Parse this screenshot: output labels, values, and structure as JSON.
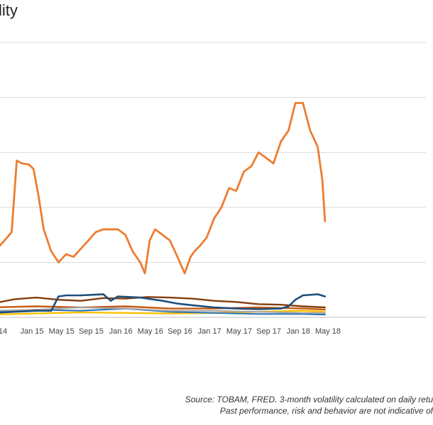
{
  "chart_data": {
    "type": "line",
    "title": "lity",
    "xlabel": "",
    "ylabel": "",
    "grid": true,
    "x_ticks": [
      "14",
      "Jan 15",
      "May 15",
      "Sep 15",
      "Jan 16",
      "May 16",
      "Sep 16",
      "Jan 17",
      "May 17",
      "Sep 17",
      "Jan 18",
      "May 18"
    ],
    "y_range": [
      0,
      500
    ],
    "colors": {
      "orange": "#ed7d31",
      "dark_brown": "#843c0c",
      "dark_blue": "#1f4e79",
      "gold": "#ffc000",
      "burnt_orange": "#c55a11",
      "steel_blue": "#2e75b6",
      "gray": "#a5a5a5"
    },
    "series": [
      {
        "color": "orange",
        "width": 2.8,
        "x": [
          "2014-10-01",
          "2014-11-01",
          "2014-12-01",
          "2014-12-20",
          "2015-01-10",
          "2015-02-01",
          "2015-03-01",
          "2015-03-20",
          "2015-04-10",
          "2015-05-01",
          "2015-06-01",
          "2015-07-01",
          "2015-08-01",
          "2015-09-01",
          "2015-10-01",
          "2015-11-01",
          "2015-12-01",
          "2016-01-01",
          "2016-02-01",
          "2016-03-01",
          "2016-04-01",
          "2016-05-01",
          "2016-06-01",
          "2016-06-20",
          "2016-07-10",
          "2016-08-01",
          "2016-09-01",
          "2016-10-01",
          "2016-11-01",
          "2016-12-01",
          "2016-12-25",
          "2017-01-10",
          "2017-02-01",
          "2017-03-01",
          "2017-04-01",
          "2017-05-01",
          "2017-06-01",
          "2017-07-01",
          "2017-08-01",
          "2017-09-01",
          "2017-10-01",
          "2017-11-01",
          "2017-12-01",
          "2018-01-01",
          "2018-02-01",
          "2018-03-01",
          "2018-04-01",
          "2018-05-01",
          "2018-06-01",
          "2018-06-20",
          "2018-07-01"
        ],
        "values": [
          125,
          130,
          145,
          155,
          285,
          280,
          278,
          270,
          220,
          160,
          120,
          100,
          115,
          110,
          125,
          140,
          155,
          160,
          160,
          160,
          150,
          120,
          100,
          80,
          140,
          160,
          150,
          140,
          110,
          80,
          110,
          120,
          130,
          145,
          180,
          200,
          235,
          230,
          265,
          275,
          300,
          290,
          280,
          320,
          340,
          390,
          390,
          340,
          310,
          250,
          175
        ]
      },
      {
        "color": "dark_brown",
        "width": 2.4,
        "x": [
          "2014-10-01",
          "2015-01-01",
          "2015-04-01",
          "2015-07-01",
          "2015-10-01",
          "2016-01-01",
          "2016-04-01",
          "2016-07-01",
          "2016-10-01",
          "2017-01-01",
          "2017-04-01",
          "2017-07-01",
          "2017-10-01",
          "2018-01-01",
          "2018-04-01",
          "2018-07-01"
        ],
        "values": [
          25,
          33,
          36,
          32,
          30,
          35,
          34,
          37,
          36,
          34,
          30,
          28,
          24,
          23,
          20,
          18
        ]
      },
      {
        "color": "dark_blue",
        "width": 2.6,
        "x": [
          "2014-10-01",
          "2015-01-01",
          "2015-04-01",
          "2015-06-01",
          "2015-07-01",
          "2015-08-01",
          "2015-10-01",
          "2016-01-01",
          "2016-02-01",
          "2016-03-01",
          "2016-06-01",
          "2016-09-01",
          "2016-11-01",
          "2017-01-01",
          "2017-04-01",
          "2017-07-01",
          "2017-10-01",
          "2018-01-01",
          "2018-02-01",
          "2018-03-01",
          "2018-04-01",
          "2018-06-01",
          "2018-07-01"
        ],
        "values": [
          8,
          10,
          12,
          12,
          38,
          40,
          40,
          42,
          30,
          38,
          36,
          30,
          25,
          22,
          18,
          16,
          15,
          16,
          20,
          32,
          40,
          42,
          38
        ]
      },
      {
        "color": "burnt_orange",
        "width": 2.4,
        "x": [
          "2014-10-01",
          "2015-04-01",
          "2015-10-01",
          "2016-04-01",
          "2016-10-01",
          "2017-04-01",
          "2017-10-01",
          "2018-04-01",
          "2018-07-01"
        ],
        "values": [
          18,
          20,
          18,
          20,
          16,
          16,
          18,
          16,
          14
        ]
      },
      {
        "color": "gold",
        "width": 2.4,
        "x": [
          "2014-10-01",
          "2015-04-01",
          "2015-10-01",
          "2016-04-01",
          "2016-10-01",
          "2017-04-01",
          "2017-10-01",
          "2018-04-01",
          "2018-07-01"
        ],
        "values": [
          5,
          7,
          9,
          8,
          7,
          8,
          10,
          12,
          10
        ]
      },
      {
        "color": "steel_blue",
        "width": 2.2,
        "x": [
          "2014-10-01",
          "2015-04-01",
          "2015-10-01",
          "2016-04-01",
          "2016-10-01",
          "2017-04-01",
          "2017-10-01",
          "2018-04-01",
          "2018-07-01"
        ],
        "values": [
          10,
          14,
          12,
          16,
          10,
          8,
          6,
          6,
          5
        ]
      },
      {
        "color": "gray",
        "width": 2,
        "x": [
          "2014-10-01",
          "2015-04-01",
          "2015-10-01",
          "2016-04-01",
          "2016-10-01",
          "2017-04-01",
          "2017-10-01",
          "2018-04-01",
          "2018-07-01"
        ],
        "values": [
          12,
          14,
          18,
          16,
          12,
          12,
          10,
          8,
          8
        ]
      }
    ]
  },
  "source_line1": "Source: TOBAM, FRED. 3-month volatility calculated on daily retu",
  "source_line2": "Past performance, risk and behavior are not indicative of"
}
